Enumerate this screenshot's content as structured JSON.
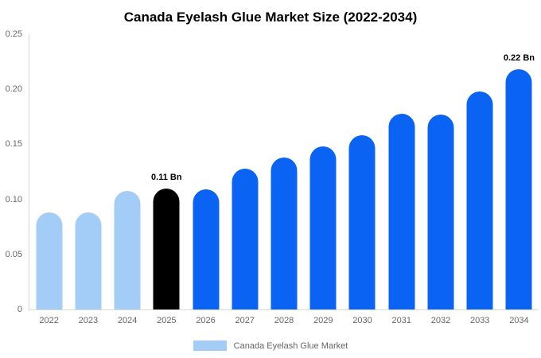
{
  "chart_data": {
    "type": "bar",
    "title": "Canada Eyelash Glue Market Size (2022-2034)",
    "categories": [
      "2022",
      "2023",
      "2024",
      "2025",
      "2026",
      "2027",
      "2028",
      "2029",
      "2030",
      "2031",
      "2032",
      "2033",
      "2034"
    ],
    "values": [
      0.088,
      0.088,
      0.108,
      0.11,
      0.109,
      0.128,
      0.138,
      0.148,
      0.158,
      0.178,
      0.177,
      0.198,
      0.218
    ],
    "bar_colors": [
      "#a3ccf6",
      "#a3ccf6",
      "#a3ccf6",
      "#000000",
      "#0a63f2",
      "#0a63f2",
      "#0a63f2",
      "#0a63f2",
      "#0a63f2",
      "#0a63f2",
      "#0a63f2",
      "#0a63f2",
      "#0a63f2"
    ],
    "annotations": [
      {
        "category": "2025",
        "text": "0.11 Bn"
      },
      {
        "category": "2034",
        "text": "0.22 Bn"
      }
    ],
    "ylim": [
      0,
      0.25
    ],
    "yticks": [
      "0",
      "0.05",
      "0.10",
      "0.15",
      "0.20",
      "0.25"
    ],
    "grid": false,
    "axis_line_color": "#d9d9d9",
    "tick_label_color": "#666666",
    "annotation_color": "#000000",
    "legend": {
      "label": "Canada Eyelash Glue Market",
      "swatch_color": "#a3ccf6",
      "position": "bottom-center"
    }
  }
}
